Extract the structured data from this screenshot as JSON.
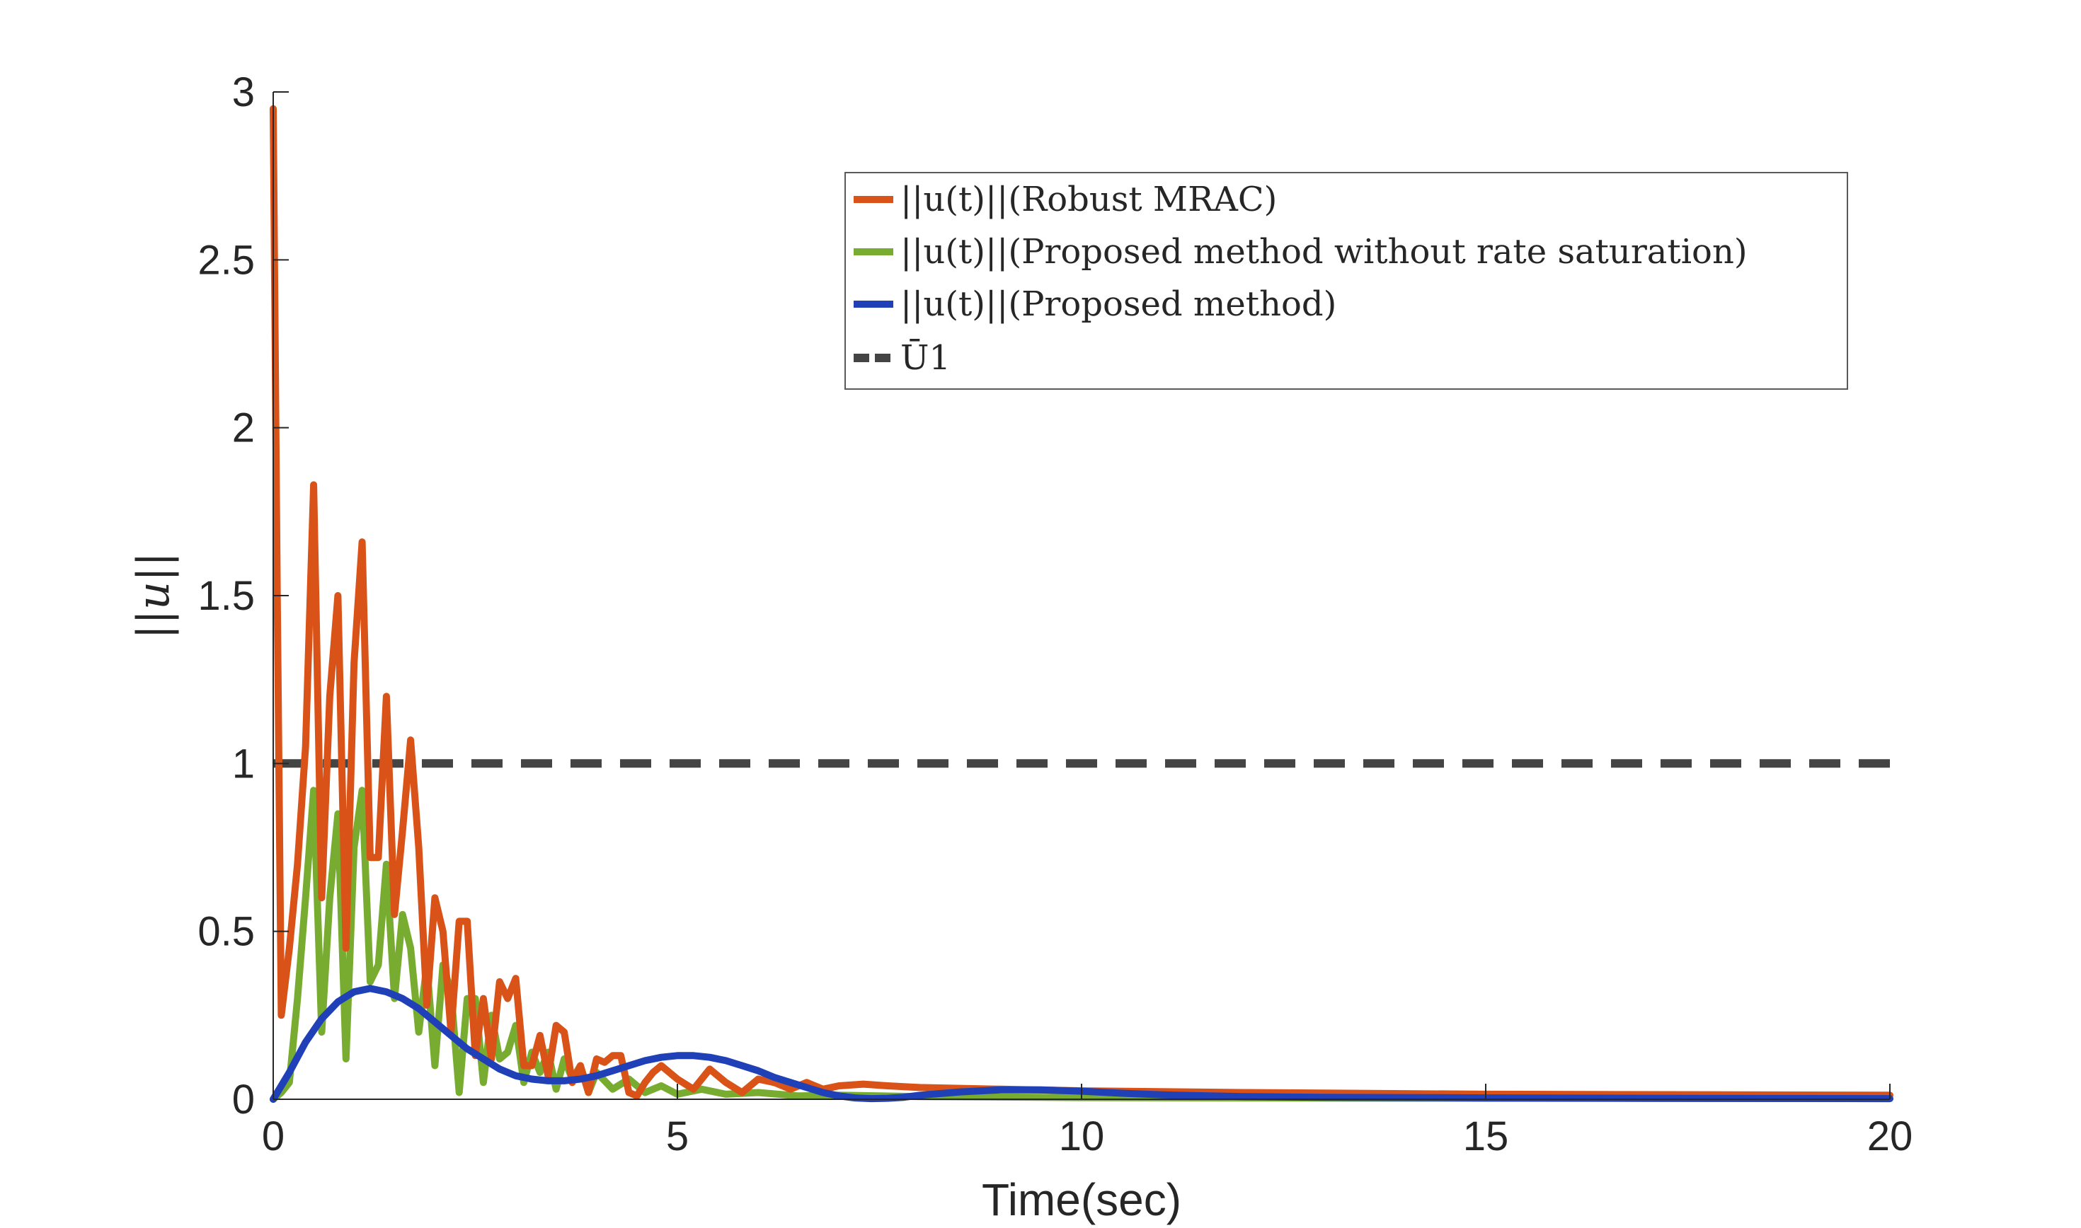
{
  "chart_data": {
    "type": "line",
    "title": "",
    "xlabel": "Time(sec)",
    "ylabel": "||u||",
    "xlim": [
      0,
      20
    ],
    "ylim": [
      0,
      3
    ],
    "xticks": [
      0,
      5,
      10,
      15,
      20
    ],
    "xtick_labels": [
      "0",
      "5",
      "10",
      "15",
      "20"
    ],
    "yticks": [
      0,
      0.5,
      1,
      1.5,
      2,
      2.5,
      3
    ],
    "ytick_labels": [
      "0",
      "0.5",
      "1",
      "1.5",
      "2",
      "2.5",
      "3"
    ],
    "grid": false,
    "legend_position": "top-right",
    "series": [
      {
        "name": "||u(t)||(Robust MRAC)",
        "color": "#d95319",
        "style": "solid",
        "x": [
          0,
          0.05,
          0.1,
          0.2,
          0.3,
          0.4,
          0.5,
          0.6,
          0.7,
          0.8,
          0.9,
          1.0,
          1.1,
          1.2,
          1.3,
          1.4,
          1.5,
          1.6,
          1.7,
          1.8,
          1.9,
          2.0,
          2.1,
          2.2,
          2.3,
          2.4,
          2.5,
          2.6,
          2.7,
          2.8,
          2.9,
          3.0,
          3.1,
          3.2,
          3.3,
          3.4,
          3.5,
          3.6,
          3.7,
          3.8,
          3.9,
          4.0,
          4.1,
          4.2,
          4.3,
          4.4,
          4.5,
          4.6,
          4.7,
          4.8,
          4.9,
          5.0,
          5.2,
          5.4,
          5.6,
          5.8,
          6.0,
          6.2,
          6.4,
          6.6,
          6.8,
          7.0,
          7.3,
          7.6,
          8.0,
          9.0,
          10.0,
          12.0,
          15.0,
          20.0
        ],
        "y": [
          2.95,
          1.5,
          0.25,
          0.45,
          0.7,
          1.05,
          1.83,
          0.6,
          1.2,
          1.5,
          0.45,
          1.3,
          1.66,
          0.72,
          0.72,
          1.2,
          0.55,
          0.8,
          1.07,
          0.75,
          0.28,
          0.6,
          0.5,
          0.2,
          0.53,
          0.53,
          0.13,
          0.3,
          0.12,
          0.35,
          0.3,
          0.36,
          0.1,
          0.1,
          0.19,
          0.07,
          0.22,
          0.2,
          0.05,
          0.1,
          0.02,
          0.12,
          0.11,
          0.13,
          0.13,
          0.02,
          0.01,
          0.05,
          0.08,
          0.1,
          0.08,
          0.06,
          0.03,
          0.09,
          0.05,
          0.02,
          0.06,
          0.05,
          0.03,
          0.05,
          0.03,
          0.04,
          0.045,
          0.04,
          0.035,
          0.03,
          0.025,
          0.02,
          0.015,
          0.012
        ]
      },
      {
        "name": "||u(t)||(Proposed method without rate saturation)",
        "color": "#77ac30",
        "style": "solid",
        "x": [
          0,
          0.1,
          0.2,
          0.3,
          0.4,
          0.5,
          0.6,
          0.7,
          0.8,
          0.9,
          1.0,
          1.1,
          1.2,
          1.3,
          1.4,
          1.5,
          1.6,
          1.7,
          1.8,
          1.9,
          2.0,
          2.1,
          2.2,
          2.3,
          2.4,
          2.5,
          2.6,
          2.7,
          2.8,
          2.9,
          3.0,
          3.1,
          3.2,
          3.3,
          3.4,
          3.5,
          3.6,
          3.7,
          3.8,
          3.9,
          4.0,
          4.2,
          4.4,
          4.6,
          4.8,
          5.0,
          5.3,
          5.6,
          6.0,
          6.5,
          7.0,
          8.0,
          10.0,
          12.0,
          15.0,
          20.0
        ],
        "y": [
          0,
          0.02,
          0.05,
          0.3,
          0.6,
          0.92,
          0.2,
          0.6,
          0.85,
          0.12,
          0.75,
          0.92,
          0.35,
          0.4,
          0.7,
          0.3,
          0.55,
          0.45,
          0.2,
          0.4,
          0.1,
          0.4,
          0.32,
          0.02,
          0.3,
          0.3,
          0.05,
          0.25,
          0.12,
          0.14,
          0.22,
          0.05,
          0.14,
          0.08,
          0.14,
          0.03,
          0.12,
          0.06,
          0.1,
          0.02,
          0.08,
          0.03,
          0.06,
          0.02,
          0.04,
          0.015,
          0.03,
          0.015,
          0.02,
          0.01,
          0.012,
          0.008,
          0.005,
          0.004,
          0.003,
          0.002
        ]
      },
      {
        "name": "||u(t)||(Proposed method)",
        "color": "#2040b8",
        "style": "solid",
        "x": [
          0,
          0.2,
          0.4,
          0.6,
          0.8,
          1.0,
          1.2,
          1.4,
          1.6,
          1.8,
          2.0,
          2.2,
          2.4,
          2.6,
          2.8,
          3.0,
          3.2,
          3.4,
          3.6,
          3.8,
          4.0,
          4.2,
          4.4,
          4.6,
          4.8,
          5.0,
          5.2,
          5.4,
          5.6,
          5.8,
          6.0,
          6.2,
          6.4,
          6.6,
          6.8,
          7.0,
          7.2,
          7.4,
          7.6,
          7.8,
          8.0,
          8.5,
          9.0,
          9.5,
          10.0,
          10.5,
          11.0,
          12.0,
          13.0,
          14.0,
          15.0,
          17.0,
          20.0
        ],
        "y": [
          0,
          0.08,
          0.17,
          0.24,
          0.29,
          0.32,
          0.33,
          0.32,
          0.3,
          0.27,
          0.23,
          0.19,
          0.15,
          0.12,
          0.09,
          0.07,
          0.06,
          0.055,
          0.055,
          0.06,
          0.07,
          0.085,
          0.1,
          0.115,
          0.125,
          0.13,
          0.13,
          0.125,
          0.115,
          0.1,
          0.085,
          0.065,
          0.05,
          0.035,
          0.02,
          0.01,
          0.004,
          0.002,
          0.003,
          0.006,
          0.012,
          0.022,
          0.028,
          0.028,
          0.024,
          0.018,
          0.013,
          0.008,
          0.006,
          0.005,
          0.004,
          0.003,
          0.002
        ]
      },
      {
        "name": "Ū1",
        "color": "#444444",
        "style": "dashed",
        "x": [
          0,
          20
        ],
        "y": [
          1,
          1
        ]
      }
    ]
  }
}
